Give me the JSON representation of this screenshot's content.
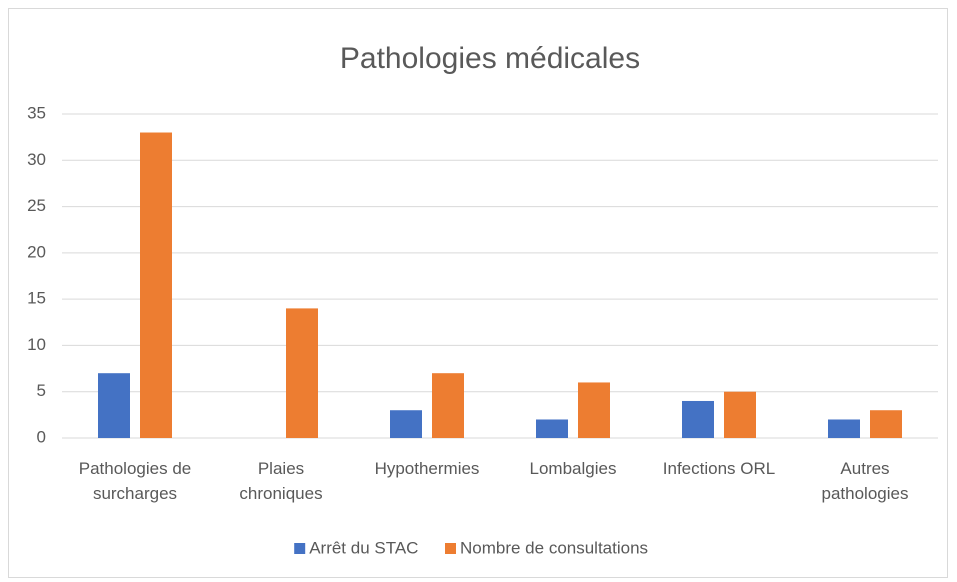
{
  "chart_data": {
    "type": "bar",
    "title": "Pathologies médicales",
    "categories": [
      "Pathologies de surcharges",
      "Plaies chroniques",
      "Hypothermies",
      "Lombalgies",
      "Infections ORL",
      "Autres pathologies"
    ],
    "series": [
      {
        "name": "Arrêt du STAC",
        "color": "#4472c4",
        "values": [
          7,
          0,
          3,
          2,
          4,
          2
        ]
      },
      {
        "name": "Nombre de consultations",
        "color": "#ed7d31",
        "values": [
          33,
          14,
          7,
          6,
          5,
          3
        ]
      }
    ],
    "ylim": [
      0,
      35
    ],
    "yticks": [
      0,
      5,
      10,
      15,
      20,
      25,
      30,
      35
    ],
    "grid": true,
    "legend": "bottom"
  }
}
